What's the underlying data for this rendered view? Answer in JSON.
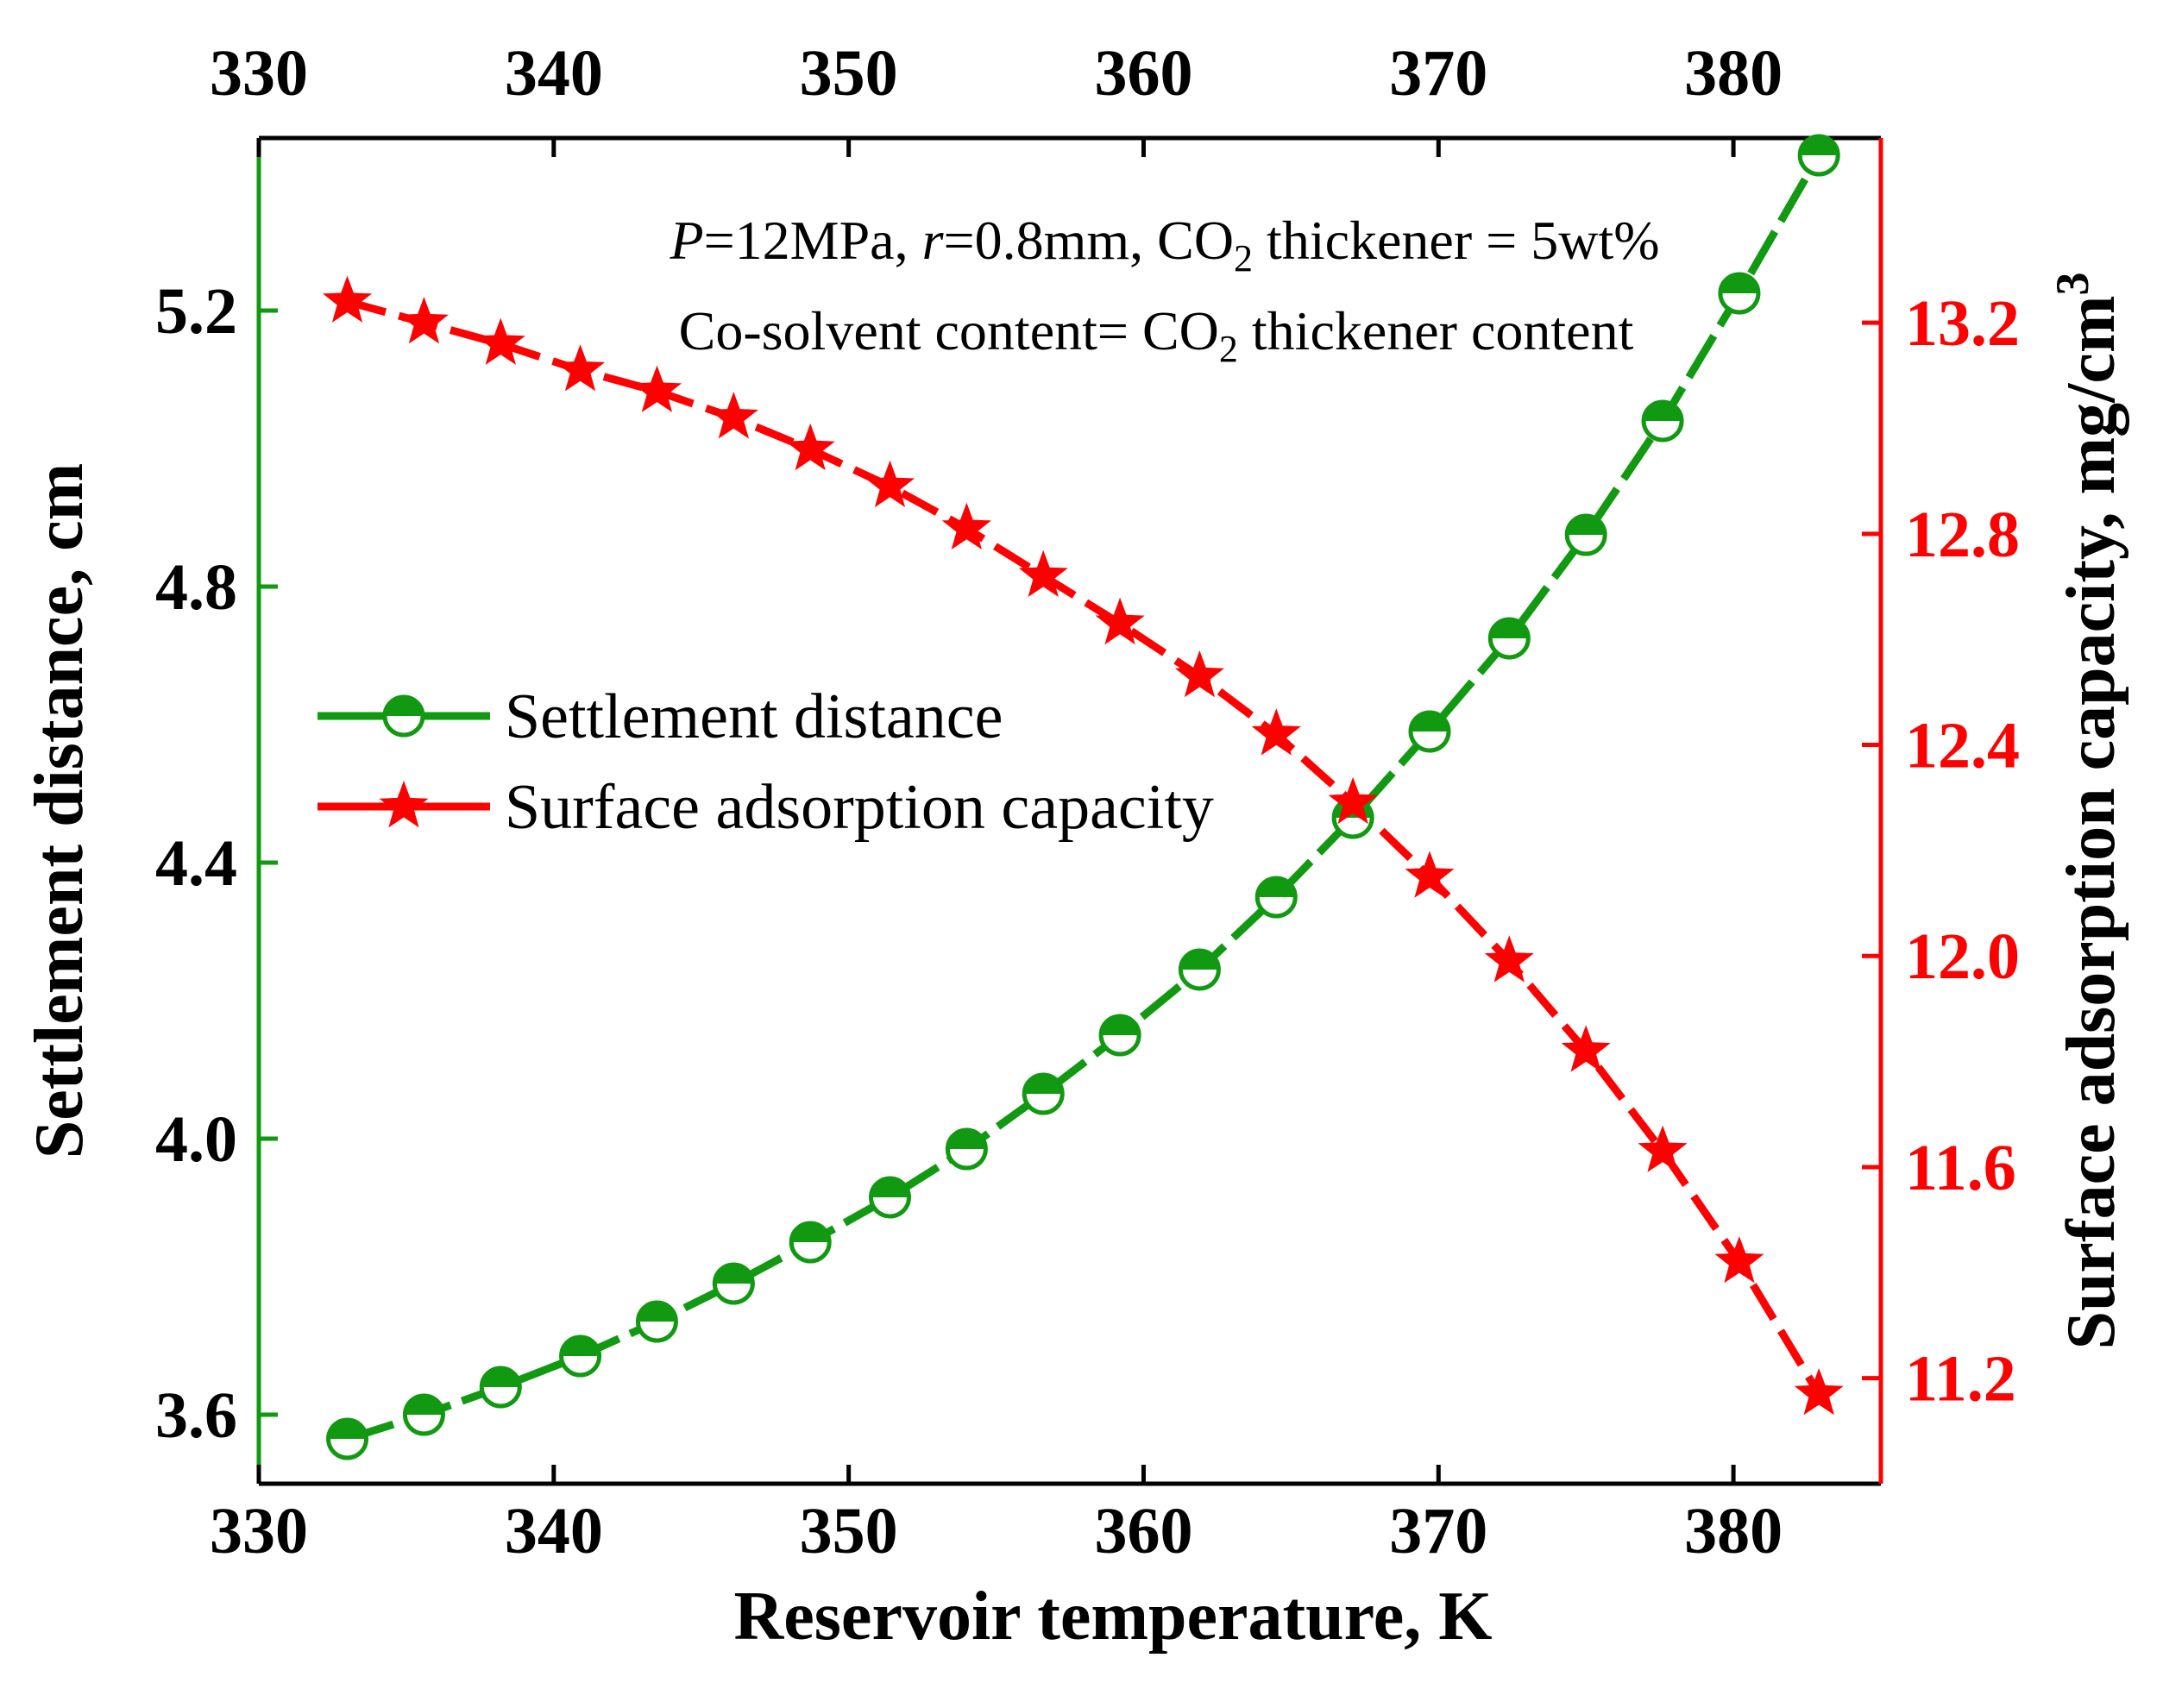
{
  "chart_data": {
    "type": "line",
    "xlabel": "Reservoir temperature, K",
    "ylabel_left": "Settlement distance, cm",
    "ylabel_right": "Surface adsorption capacity, mg/cm",
    "ylabel_right_sup": "3",
    "xlim": [
      330,
      385
    ],
    "ylim_left": [
      3.5,
      5.45
    ],
    "ylim_right": [
      11.0,
      13.55
    ],
    "x_ticks": [
      330,
      340,
      350,
      360,
      370,
      380
    ],
    "x_tick_labels": [
      "330",
      "340",
      "350",
      "360",
      "370",
      "380"
    ],
    "y_left_ticks": [
      3.6,
      4.0,
      4.4,
      4.8,
      5.2
    ],
    "y_left_tick_labels": [
      "3.6",
      "4.0",
      "4.4",
      "4.8",
      "5.2"
    ],
    "y_right_ticks": [
      11.2,
      11.6,
      12.0,
      12.4,
      12.8,
      13.2
    ],
    "y_right_tick_labels": [
      "11.2",
      "11.6",
      "12.0",
      "12.4",
      "12.8",
      "13.2"
    ],
    "x": [
      333.0,
      335.6,
      338.2,
      340.9,
      343.5,
      346.1,
      348.7,
      351.4,
      354.0,
      356.6,
      359.2,
      361.9,
      364.5,
      367.1,
      369.7,
      372.4,
      375.0,
      377.6,
      380.2,
      382.9
    ],
    "series": [
      {
        "name": "Settlement distance",
        "axis": "left",
        "color": "#119911",
        "marker": "half-circle",
        "values": [
          3.565,
          3.6,
          3.64,
          3.685,
          3.735,
          3.79,
          3.85,
          3.915,
          3.985,
          4.065,
          4.15,
          4.245,
          4.35,
          4.465,
          4.59,
          4.725,
          4.875,
          5.04,
          5.225,
          5.425
        ]
      },
      {
        "name": "Surface adsorption capacity",
        "axis": "right",
        "color": "#ff0000",
        "marker": "star",
        "values": [
          13.24,
          13.2,
          13.16,
          13.11,
          13.07,
          13.02,
          12.96,
          12.89,
          12.81,
          12.72,
          12.63,
          12.53,
          12.42,
          12.29,
          12.15,
          11.99,
          11.82,
          11.63,
          11.42,
          11.17
        ]
      }
    ],
    "annotation_line1": {
      "p_var": "P",
      "p_rest": "=12MPa, ",
      "r_var": "r",
      "r_rest": "=0.8mm, CO",
      "sub": "2",
      "tail": " thickener = 5wt%"
    },
    "annotation_line2": {
      "head": "Co-solvent content= CO",
      "sub": "2",
      "tail": " thickener content"
    },
    "legend_position": "center-left"
  },
  "colors": {
    "axis_frame": "#000000",
    "left_axis": "#119911",
    "right_axis": "#ff0000"
  }
}
